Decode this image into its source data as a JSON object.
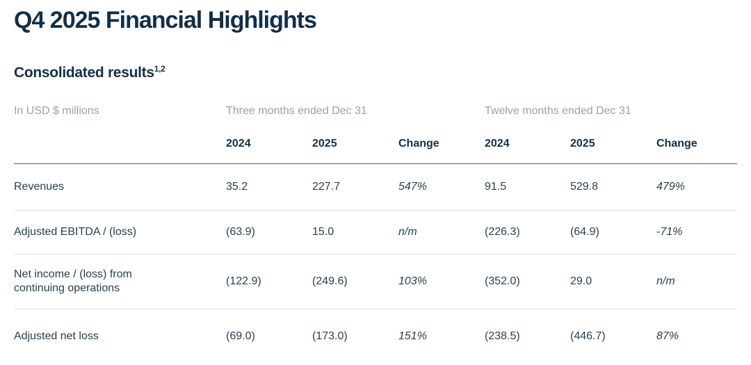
{
  "page": {
    "title": "Q4 2025 Financial Highlights",
    "section_title": "Consolidated results",
    "section_footnote_refs": "1,2"
  },
  "table": {
    "unit_label": "In USD $ millions",
    "groups": [
      {
        "label": "Three months ended Dec 31"
      },
      {
        "label": "Twelve months ended Dec 31"
      }
    ],
    "columns": [
      "2024",
      "2025",
      "Change",
      "2024",
      "2025",
      "Change"
    ],
    "rows": [
      {
        "label": "Revenues",
        "values": [
          "35.2",
          "227.7",
          "547%",
          "91.5",
          "529.8",
          "479%"
        ]
      },
      {
        "label": "Adjusted EBITDA / (loss)",
        "values": [
          "(63.9)",
          "15.0",
          "n/m",
          "(226.3)",
          "(64.9)",
          "-71%"
        ]
      },
      {
        "label": "Net income / (loss) from continuing operations",
        "values": [
          "(122.9)",
          "(249.6)",
          "103%",
          "(352.0)",
          "29.0",
          "n/m"
        ]
      },
      {
        "label": "Adjusted net loss",
        "values": [
          "(69.0)",
          "(173.0)",
          "151%",
          "(238.5)",
          "(446.7)",
          "87%"
        ]
      }
    ]
  },
  "colors": {
    "heading": "#132f47",
    "body_text": "#27404f",
    "muted_text": "#99a1a8",
    "header_rule": "#55626b",
    "row_rule": "#dcdfe2",
    "background": "#ffffff"
  }
}
